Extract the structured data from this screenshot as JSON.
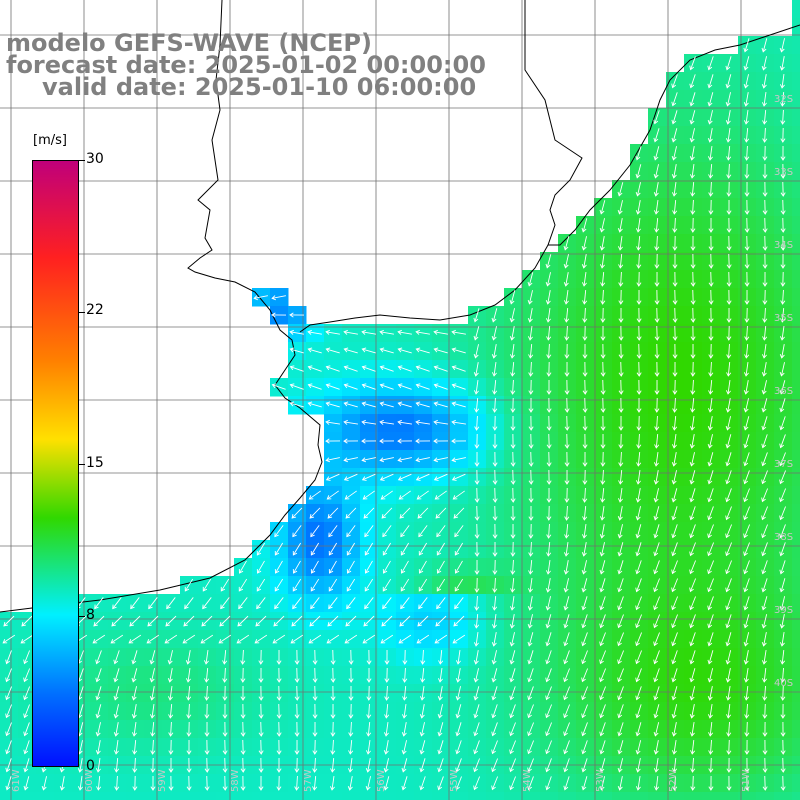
{
  "header": {
    "title": "modelo GEFS-WAVE (NCEP)",
    "forecast_line": "forecast date: 2025-01-02 00:00:00",
    "valid_line": "valid date: 2025-01-10 06:00:00"
  },
  "colorbar": {
    "unit": "[m/s]",
    "ticks": [
      "30",
      "22",
      "15",
      "8",
      "0"
    ],
    "colors": [
      "#c0007a",
      "#ff2020",
      "#ff8000",
      "#ffe000",
      "#30d800",
      "#00f0ff",
      "#0070ff",
      "#0010ff"
    ]
  },
  "axes": {
    "lat_labels": [
      "32S",
      "33S",
      "34S",
      "35S",
      "36S",
      "37S",
      "38S",
      "39S",
      "40S"
    ],
    "lon_labels": [
      "61W",
      "60W",
      "59W",
      "58W",
      "57W",
      "56W",
      "55W",
      "54W",
      "53W",
      "52W",
      "51W"
    ]
  },
  "map": {
    "field": "wind speed",
    "colors": {
      "land": "#ffffff",
      "coast": "#000000",
      "grid": "#707070",
      "arrows": "#ffffff",
      "low": "#0a3cf0",
      "mid": "#00e6ff",
      "high": "#2ee040"
    }
  }
}
